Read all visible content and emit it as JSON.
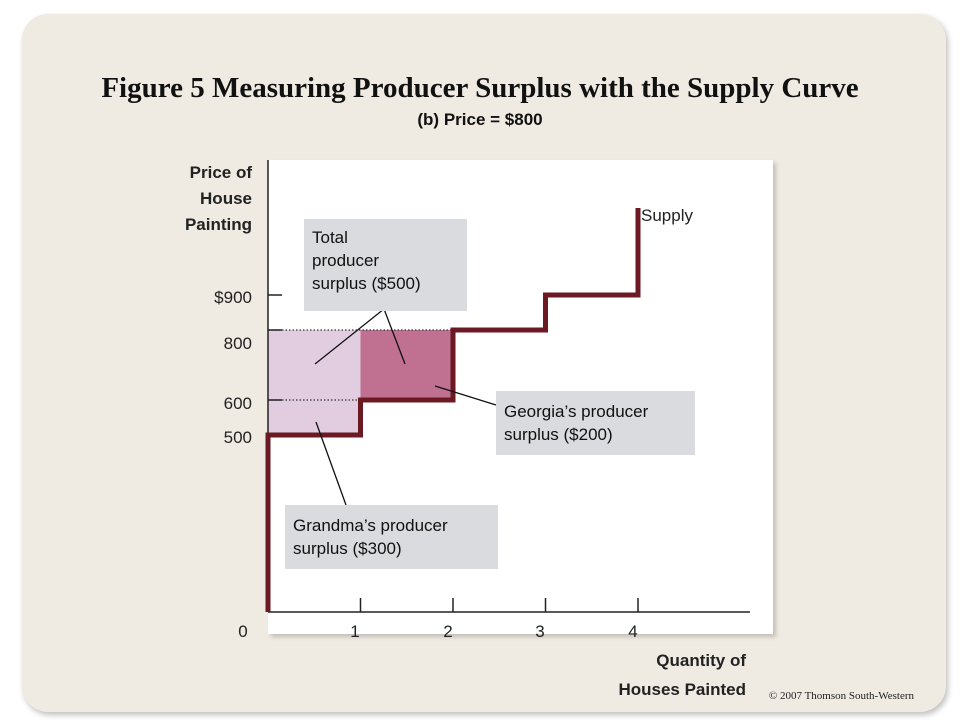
{
  "title": "Figure 5 Measuring Producer Surplus with the Supply Curve",
  "subtitle": "(b) Price = $800",
  "copyright": "© 2007 Thomson South-Western",
  "colors": {
    "supply_curve": "#6b1a24",
    "grandma_surplus": "#e2cce0",
    "georgia_surplus": "#c07090",
    "callout_box": "#d9dbde",
    "panel": "#efeae2"
  },
  "chart_data": {
    "type": "area",
    "title": "Figure 5 Measuring Producer Surplus with the Supply Curve",
    "subtitle": "(b) Price = $800",
    "ylabel_lines": [
      "Price of",
      "House",
      "Painting"
    ],
    "xlabel_lines": [
      "Quantity of",
      "Houses Painted"
    ],
    "xlim": [
      0,
      5
    ],
    "ylim": [
      0,
      1000
    ],
    "x_ticks": [
      0,
      1,
      2,
      3,
      4
    ],
    "x_tick_labels": [
      "0",
      "1",
      "2",
      "3",
      "4"
    ],
    "y_ticks": [
      500,
      600,
      800,
      900
    ],
    "y_tick_labels": [
      "500",
      "600",
      "800",
      "$900"
    ],
    "price": 800,
    "supply_steps": [
      {
        "seller_order": 1,
        "cost": 500
      },
      {
        "seller_order": 2,
        "cost": 600
      },
      {
        "seller_order": 3,
        "cost": 800
      },
      {
        "seller_order": 4,
        "cost": 900
      }
    ],
    "supply_label": "Supply",
    "surplus_regions": [
      {
        "name": "Grandma",
        "from_qty": 0,
        "to_qty": 1,
        "cost": 500,
        "price": 800,
        "surplus": 300
      },
      {
        "name": "Georgia",
        "from_qty": 1,
        "to_qty": 2,
        "cost": 600,
        "price": 800,
        "surplus": 200
      }
    ],
    "total_surplus": 500,
    "grid": false
  },
  "callouts": {
    "total": [
      "Total",
      "producer",
      "surplus ($500)"
    ],
    "georgia": [
      "Georgia’s producer",
      "surplus ($200)"
    ],
    "grandma": [
      "Grandma’s producer",
      "surplus ($300)"
    ]
  }
}
